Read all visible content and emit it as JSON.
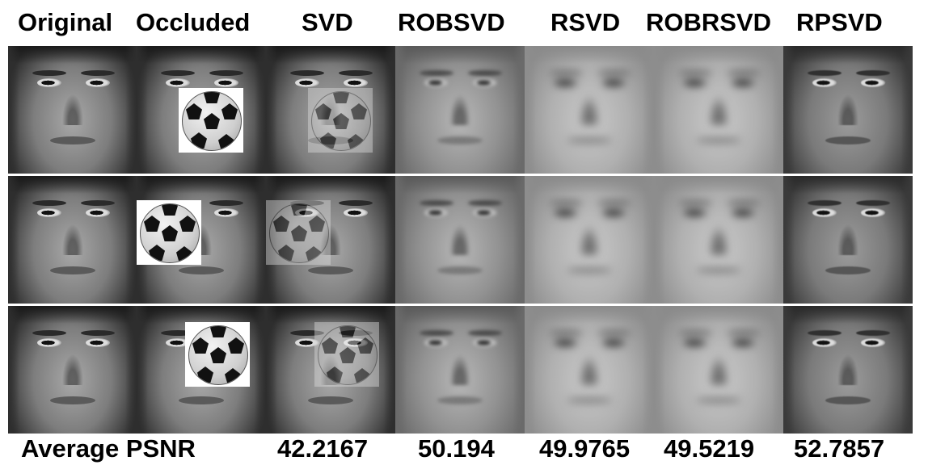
{
  "columns": {
    "original": "Original",
    "occluded": "Occluded",
    "svd": "SVD",
    "robsvd": "ROBSVD",
    "rsvd": "RSVD",
    "robrsvd": "ROBRSVD",
    "rpsvd": "RPSVD"
  },
  "footer": {
    "label": "Average PSNR",
    "svd": "42.2167",
    "robsvd": "50.194",
    "rsvd": "49.9765",
    "robrsvd": "49.5219",
    "rpsvd": "52.7857"
  },
  "images": {
    "rows": 3,
    "cols": 7,
    "occluder": "soccer-ball"
  }
}
